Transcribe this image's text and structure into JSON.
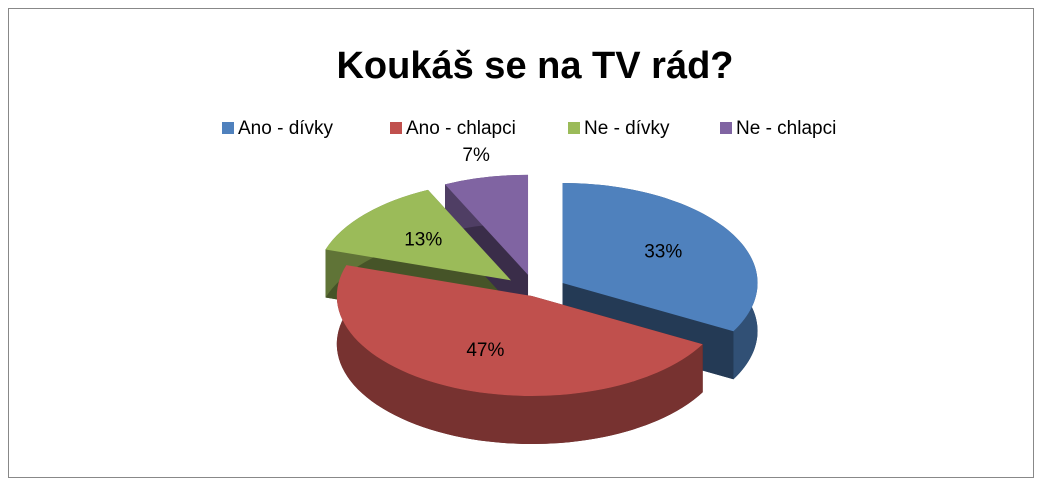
{
  "chart_data": {
    "type": "pie",
    "title": "Koukáš se na TV rád?",
    "categories": [
      "Ano - dívky",
      "Ano - chlapci",
      "Ne - dívky",
      "Ne - chlapci"
    ],
    "values": [
      33,
      47,
      13,
      7
    ],
    "value_labels": [
      "33%",
      "47%",
      "13%",
      "7%"
    ],
    "colors": [
      "#4f81bd",
      "#c0504d",
      "#9bbb59",
      "#8064a2"
    ],
    "legend": "top"
  }
}
